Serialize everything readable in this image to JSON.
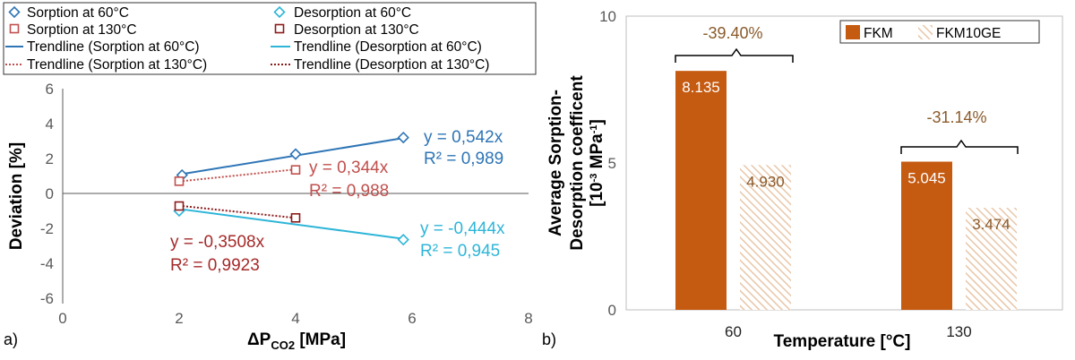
{
  "colors": {
    "sorption60": "#2e75b6",
    "desorption60": "#2eb5d8",
    "sorption130": "#c0504d",
    "desorption130": "#8b1a1a",
    "fkm": "#c55a11",
    "fkm10ge": "#e8c6a8",
    "axis": "#595959",
    "annotation": "#8a5a2b"
  },
  "panel_labels": {
    "a": "a)",
    "b": "b)"
  },
  "legend_a": {
    "sorption60": "Sorption at 60°C",
    "desorption60": "Desorption at 60°C",
    "sorption130": "Sorption at 130°C",
    "desorption130": "Desorption at 130°C",
    "trend_sorption60": "Trendline (Sorption at 60°C)",
    "trend_desorption60": "Trendline (Desorption at 60°C)",
    "trend_sorption130": "Trendline (Sorption at 130°C)",
    "trend_desorption130": "Trendline (Desorption at 130°C)"
  },
  "chart_data": [
    {
      "type": "scatter",
      "title": "",
      "xlabel": "ΔPCO2 [MPa]",
      "xlabel_main": "ΔP",
      "xlabel_sub": "CO2",
      "xlabel_unit": " [MPa]",
      "ylabel": "Deviation [%]",
      "xlim": [
        0,
        8
      ],
      "ylim": [
        -6,
        6
      ],
      "xticks": [
        0,
        2,
        4,
        6,
        8
      ],
      "yticks": [
        -6,
        -4,
        -2,
        0,
        2,
        4,
        6
      ],
      "grid": false,
      "legend": "top",
      "series": [
        {
          "name": "Sorption at 60°C",
          "marker": "diamond",
          "points": [
            [
              2.05,
              1.05
            ],
            [
              4.0,
              2.25
            ],
            [
              5.85,
              3.2
            ]
          ]
        },
        {
          "name": "Desorption at 60°C",
          "marker": "diamond",
          "points": [
            [
              2.0,
              -1.0
            ],
            [
              5.85,
              -2.65
            ]
          ]
        },
        {
          "name": "Sorption at 130°C",
          "marker": "square",
          "points": [
            [
              2.0,
              0.7
            ],
            [
              4.0,
              1.35
            ]
          ]
        },
        {
          "name": "Desorption at 130°C",
          "marker": "square",
          "points": [
            [
              2.0,
              -0.72
            ],
            [
              4.0,
              -1.4
            ]
          ]
        }
      ],
      "trendlines": [
        {
          "name": "Trendline (Sorption at 60°C)",
          "slope": 0.542,
          "x_range": [
            2.0,
            5.9
          ],
          "equation": "y = 0,542x",
          "r2": "R² = 0,989"
        },
        {
          "name": "Trendline (Desorption at 60°C)",
          "slope": -0.444,
          "x_range": [
            2.0,
            5.9
          ],
          "equation": "y = -0,444x",
          "r2": "R² = 0,945"
        },
        {
          "name": "Trendline (Sorption at 130°C)",
          "slope": 0.344,
          "x_range": [
            2.0,
            4.0
          ],
          "equation": "y = 0,344x",
          "r2": "R² = 0,988"
        },
        {
          "name": "Trendline (Desorption at 130°C)",
          "slope": -0.3508,
          "x_range": [
            2.0,
            4.0
          ],
          "equation": "y = -0,3508x",
          "r2": "R² = 0,9923"
        }
      ]
    },
    {
      "type": "bar",
      "title": "",
      "xlabel": "Temperature [°C]",
      "ylabel": "Average Sorption-Desorption coefficent [10-3 MPa-1]",
      "ylabel_line1": "Average Sorption-",
      "ylabel_line2": "Desorption coefficent",
      "ylabel_line3": "[10-3 MPa-1]",
      "categories": [
        "60",
        "130"
      ],
      "ylim": [
        0,
        10
      ],
      "yticks": [
        0,
        5,
        10
      ],
      "legend": "top-right",
      "series": [
        {
          "name": "FKM",
          "values": [
            8.135,
            5.045
          ],
          "labels": [
            "8.135",
            "5.045"
          ]
        },
        {
          "name": "FKM10GE",
          "values": [
            4.93,
            3.474
          ],
          "labels": [
            "4.930",
            "3.474"
          ]
        }
      ],
      "annotations": [
        "-39.40%",
        "-31.14%"
      ]
    }
  ]
}
